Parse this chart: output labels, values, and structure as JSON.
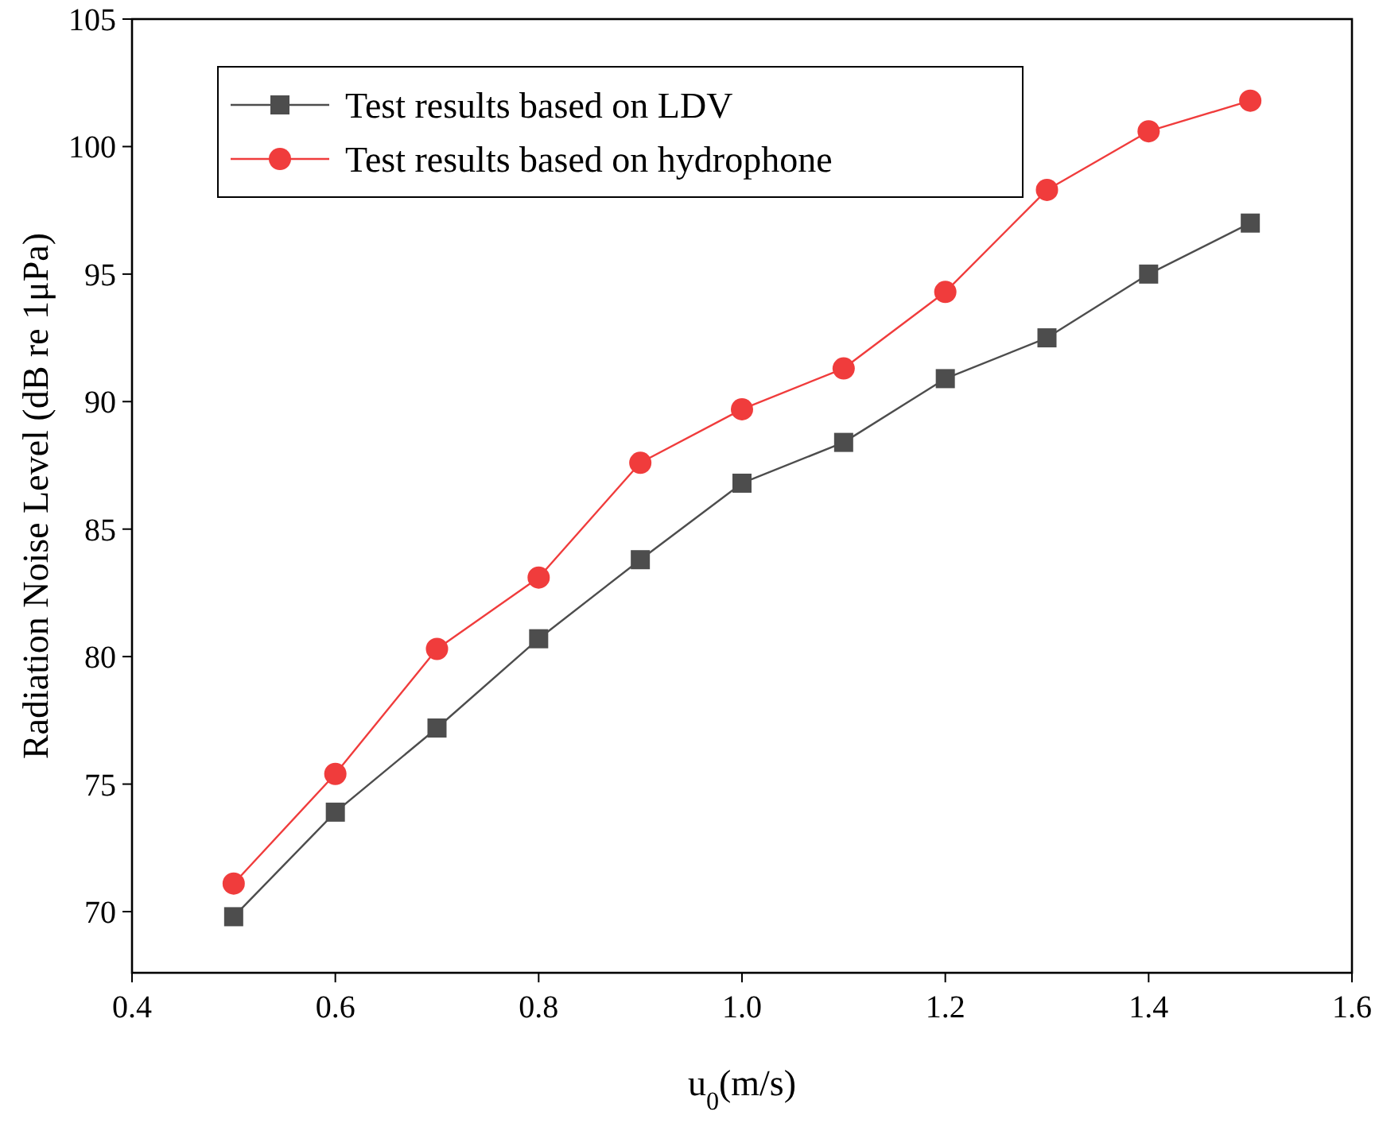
{
  "chart_data": {
    "type": "line",
    "xlabel": "u$_{0}$(m/s)",
    "ylabel": "Radiation Noise Level (dB re 1μPa)",
    "x": [
      0.5,
      0.6,
      0.7,
      0.8,
      0.9,
      1.0,
      1.1,
      1.2,
      1.3,
      1.4,
      1.5
    ],
    "xlim": [
      0.4,
      1.6
    ],
    "xticks": [
      {
        "value": 0.4,
        "label": "0.4"
      },
      {
        "value": 0.6,
        "label": "0.6"
      },
      {
        "value": 0.8,
        "label": "0.8"
      },
      {
        "value": 1.0,
        "label": "1.0"
      },
      {
        "value": 1.2,
        "label": "1.2"
      },
      {
        "value": 1.4,
        "label": "1.4"
      },
      {
        "value": 1.6,
        "label": "1.6"
      }
    ],
    "ylim": [
      67.6,
      105
    ],
    "yticks": [
      70,
      75,
      80,
      85,
      90,
      95,
      100,
      105
    ],
    "legend": "top left",
    "grid": false,
    "line_style": "solid",
    "series": [
      {
        "name": "Test results based on LDV",
        "color": "#4d4d4d",
        "marker": "square",
        "values": [
          69.8,
          73.9,
          77.2,
          80.7,
          83.8,
          86.8,
          88.4,
          90.9,
          92.5,
          95.0,
          97.0
        ]
      },
      {
        "name": "Test results based on hydrophone",
        "color": "#f03c3c",
        "marker": "circle",
        "values": [
          71.1,
          75.4,
          80.3,
          83.1,
          87.6,
          89.7,
          91.3,
          94.3,
          98.3,
          100.6,
          101.8
        ]
      }
    ]
  }
}
